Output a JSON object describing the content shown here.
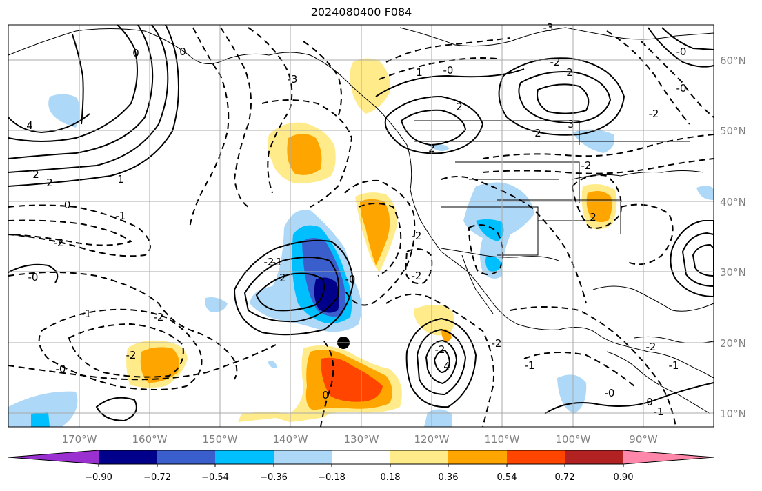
{
  "title": "2024080400 F084",
  "latitudes": [
    "60°N",
    "50°N",
    "40°N",
    "30°N",
    "20°N",
    "10°N"
  ],
  "longitudes": [
    "170°W",
    "160°W",
    "150°W",
    "140°W",
    "130°W",
    "120°W",
    "110°W",
    "100°W",
    "90°W"
  ],
  "colorbar": {
    "colors": [
      "#9b30d0",
      "#00008b",
      "#3a5fcd",
      "#00bfff",
      "#add8f7",
      "#ffffff",
      "#ffeb8a",
      "#ffa500",
      "#ff4500",
      "#b22222",
      "#ff88aa"
    ],
    "ticks": [
      "−0.90",
      "−0.72",
      "−0.54",
      "−0.36",
      "−0.18",
      "0.18",
      "0.36",
      "0.54",
      "0.72",
      "0.90"
    ]
  },
  "contour_labels": [
    "0",
    "0",
    "4",
    "2",
    "2",
    "1",
    "-0",
    "-1",
    "-2",
    "-0",
    "-1",
    "-2",
    "-2",
    "-0",
    "-3",
    "-2",
    "-1",
    "-0",
    "2",
    "0",
    "1",
    "2",
    "2",
    "-0",
    "2",
    "2",
    "3",
    "-2",
    "-2",
    "2",
    "-2",
    "-3",
    "-4",
    "-4",
    "-2",
    "4",
    "-2",
    "-2",
    "-0",
    "-1",
    "-1",
    "0",
    "-0",
    "-2",
    "-2",
    "-0",
    "-1",
    "-2"
  ],
  "marker": "tropical-cyclone-position"
}
